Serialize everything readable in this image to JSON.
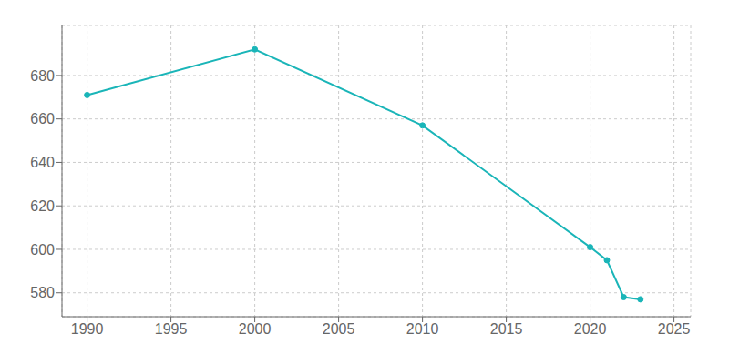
{
  "chart_data": {
    "type": "line",
    "x": [
      1990,
      2000,
      2010,
      2020,
      2021,
      2022,
      2023
    ],
    "values": [
      671,
      692,
      657,
      601,
      595,
      578,
      577
    ],
    "color": "#1ab5b8",
    "marker": "circle",
    "xlim": [
      1988.5,
      2026
    ],
    "ylim": [
      569,
      703
    ],
    "xticks": [
      1990,
      1995,
      2000,
      2005,
      2010,
      2015,
      2020,
      2025
    ],
    "yticks": [
      580,
      600,
      620,
      640,
      660,
      680
    ],
    "grid": true
  }
}
